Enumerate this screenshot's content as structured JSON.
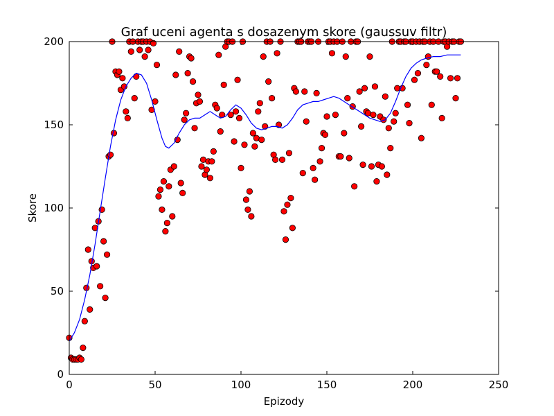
{
  "chart_data": {
    "type": "scatter",
    "title": "Graf uceni agenta s dosazenym skore (gaussuv filtr)",
    "xlabel": "Epizody",
    "ylabel": "Skore",
    "xlim": [
      0,
      250
    ],
    "ylim": [
      0,
      200
    ],
    "xticks": [
      0,
      50,
      100,
      150,
      200,
      250
    ],
    "yticks": [
      0,
      50,
      100,
      150,
      200
    ],
    "grid": false,
    "legend": "none",
    "colors": {
      "points": "#ff0000",
      "point_edge": "#000000",
      "line": "#0000ff"
    },
    "points": [
      [
        0,
        22
      ],
      [
        1,
        10
      ],
      [
        2,
        9
      ],
      [
        3,
        9
      ],
      [
        4,
        9
      ],
      [
        5,
        9
      ],
      [
        6,
        10
      ],
      [
        7,
        9
      ],
      [
        8,
        16
      ],
      [
        9,
        32
      ],
      [
        10,
        52
      ],
      [
        11,
        75
      ],
      [
        12,
        39
      ],
      [
        13,
        68
      ],
      [
        14,
        64
      ],
      [
        15,
        88
      ],
      [
        16,
        65
      ],
      [
        17,
        92
      ],
      [
        18,
        53
      ],
      [
        19,
        99
      ],
      [
        20,
        80
      ],
      [
        21,
        46
      ],
      [
        22,
        72
      ],
      [
        23,
        131
      ],
      [
        24,
        132
      ],
      [
        25,
        200
      ],
      [
        26,
        145
      ],
      [
        27,
        182
      ],
      [
        28,
        180
      ],
      [
        29,
        182
      ],
      [
        30,
        171
      ],
      [
        31,
        178
      ],
      [
        32,
        173
      ],
      [
        33,
        158
      ],
      [
        34,
        154
      ],
      [
        35,
        200
      ],
      [
        36,
        194
      ],
      [
        37,
        200
      ],
      [
        38,
        166
      ],
      [
        39,
        179
      ],
      [
        40,
        200
      ],
      [
        41,
        195
      ],
      [
        42,
        200
      ],
      [
        43,
        200
      ],
      [
        44,
        191
      ],
      [
        45,
        200
      ],
      [
        46,
        195
      ],
      [
        47,
        200
      ],
      [
        48,
        159
      ],
      [
        49,
        199
      ],
      [
        50,
        164
      ],
      [
        51,
        186
      ],
      [
        52,
        107
      ],
      [
        53,
        111
      ],
      [
        54,
        99
      ],
      [
        55,
        116
      ],
      [
        56,
        86
      ],
      [
        57,
        91
      ],
      [
        58,
        113
      ],
      [
        59,
        123
      ],
      [
        60,
        95
      ],
      [
        61,
        125
      ],
      [
        62,
        180
      ],
      [
        63,
        141
      ],
      [
        64,
        194
      ],
      [
        65,
        115
      ],
      [
        66,
        109
      ],
      [
        67,
        153
      ],
      [
        68,
        157
      ],
      [
        69,
        181
      ],
      [
        70,
        191
      ],
      [
        71,
        190
      ],
      [
        72,
        176
      ],
      [
        73,
        148
      ],
      [
        74,
        163
      ],
      [
        75,
        168
      ],
      [
        76,
        164
      ],
      [
        77,
        125
      ],
      [
        78,
        129
      ],
      [
        79,
        120
      ],
      [
        80,
        123
      ],
      [
        81,
        128
      ],
      [
        82,
        118
      ],
      [
        83,
        128
      ],
      [
        84,
        134
      ],
      [
        85,
        162
      ],
      [
        86,
        160
      ],
      [
        87,
        192
      ],
      [
        88,
        146
      ],
      [
        89,
        156
      ],
      [
        90,
        174
      ],
      [
        91,
        197
      ],
      [
        92,
        200
      ],
      [
        93,
        200
      ],
      [
        94,
        156
      ],
      [
        95,
        200
      ],
      [
        96,
        140
      ],
      [
        97,
        158
      ],
      [
        98,
        177
      ],
      [
        99,
        154
      ],
      [
        100,
        124
      ],
      [
        101,
        200
      ],
      [
        102,
        138
      ],
      [
        103,
        105
      ],
      [
        104,
        99
      ],
      [
        105,
        110
      ],
      [
        106,
        95
      ],
      [
        107,
        145
      ],
      [
        108,
        137
      ],
      [
        109,
        142
      ],
      [
        110,
        158
      ],
      [
        111,
        163
      ],
      [
        112,
        141
      ],
      [
        113,
        191
      ],
      [
        114,
        149
      ],
      [
        115,
        200
      ],
      [
        116,
        176
      ],
      [
        117,
        200
      ],
      [
        118,
        166
      ],
      [
        119,
        132
      ],
      [
        120,
        129
      ],
      [
        121,
        193
      ],
      [
        122,
        150
      ],
      [
        123,
        200
      ],
      [
        124,
        129
      ],
      [
        125,
        98
      ],
      [
        126,
        81
      ],
      [
        127,
        102
      ],
      [
        128,
        133
      ],
      [
        129,
        106
      ],
      [
        130,
        88
      ],
      [
        131,
        172
      ],
      [
        132,
        170
      ],
      [
        133,
        200
      ],
      [
        134,
        200
      ],
      [
        135,
        200
      ],
      [
        136,
        121
      ],
      [
        137,
        170
      ],
      [
        138,
        152
      ],
      [
        139,
        200
      ],
      [
        140,
        200
      ],
      [
        141,
        200
      ],
      [
        142,
        124
      ],
      [
        143,
        117
      ],
      [
        144,
        169
      ],
      [
        145,
        200
      ],
      [
        146,
        128
      ],
      [
        147,
        136
      ],
      [
        148,
        145
      ],
      [
        149,
        144
      ],
      [
        150,
        155
      ],
      [
        151,
        200
      ],
      [
        152,
        200
      ],
      [
        153,
        193
      ],
      [
        154,
        200
      ],
      [
        155,
        156
      ],
      [
        156,
        200
      ],
      [
        157,
        131
      ],
      [
        158,
        131
      ],
      [
        159,
        200
      ],
      [
        160,
        145
      ],
      [
        161,
        191
      ],
      [
        162,
        166
      ],
      [
        163,
        130
      ],
      [
        164,
        200
      ],
      [
        165,
        161
      ],
      [
        166,
        113
      ],
      [
        167,
        200
      ],
      [
        168,
        200
      ],
      [
        169,
        170
      ],
      [
        170,
        149
      ],
      [
        171,
        126
      ],
      [
        172,
        172
      ],
      [
        173,
        158
      ],
      [
        174,
        157
      ],
      [
        175,
        191
      ],
      [
        176,
        125
      ],
      [
        177,
        156
      ],
      [
        178,
        173
      ],
      [
        179,
        116
      ],
      [
        180,
        126
      ],
      [
        181,
        155
      ],
      [
        182,
        125
      ],
      [
        183,
        153
      ],
      [
        184,
        167
      ],
      [
        185,
        120
      ],
      [
        186,
        148
      ],
      [
        187,
        136
      ],
      [
        188,
        200
      ],
      [
        189,
        152
      ],
      [
        190,
        157
      ],
      [
        191,
        172
      ],
      [
        192,
        200
      ],
      [
        193,
        200
      ],
      [
        194,
        172
      ],
      [
        195,
        200
      ],
      [
        196,
        200
      ],
      [
        197,
        162
      ],
      [
        198,
        151
      ],
      [
        199,
        200
      ],
      [
        200,
        200
      ],
      [
        201,
        177
      ],
      [
        202,
        200
      ],
      [
        203,
        181
      ],
      [
        204,
        200
      ],
      [
        205,
        142
      ],
      [
        206,
        200
      ],
      [
        207,
        200
      ],
      [
        208,
        186
      ],
      [
        209,
        191
      ],
      [
        210,
        200
      ],
      [
        211,
        162
      ],
      [
        212,
        200
      ],
      [
        213,
        182
      ],
      [
        214,
        182
      ],
      [
        215,
        200
      ],
      [
        216,
        179
      ],
      [
        217,
        154
      ],
      [
        218,
        200
      ],
      [
        219,
        200
      ],
      [
        220,
        197
      ],
      [
        221,
        200
      ],
      [
        222,
        178
      ],
      [
        223,
        200
      ],
      [
        224,
        200
      ],
      [
        225,
        166
      ],
      [
        226,
        178
      ],
      [
        227,
        200
      ],
      [
        228,
        200
      ]
    ],
    "smoothed_line": [
      [
        0,
        20
      ],
      [
        3,
        25
      ],
      [
        6,
        33
      ],
      [
        9,
        45
      ],
      [
        12,
        60
      ],
      [
        15,
        78
      ],
      [
        18,
        98
      ],
      [
        21,
        118
      ],
      [
        24,
        137
      ],
      [
        27,
        153
      ],
      [
        30,
        165
      ],
      [
        33,
        173
      ],
      [
        36,
        178
      ],
      [
        39,
        181
      ],
      [
        42,
        180
      ],
      [
        45,
        175
      ],
      [
        48,
        165
      ],
      [
        51,
        153
      ],
      [
        54,
        142
      ],
      [
        56,
        137
      ],
      [
        58,
        136
      ],
      [
        61,
        139
      ],
      [
        64,
        145
      ],
      [
        67,
        150
      ],
      [
        70,
        153
      ],
      [
        73,
        154
      ],
      [
        76,
        154
      ],
      [
        79,
        156
      ],
      [
        82,
        158
      ],
      [
        85,
        156
      ],
      [
        88,
        154
      ],
      [
        91,
        155
      ],
      [
        94,
        159
      ],
      [
        97,
        162
      ],
      [
        100,
        160
      ],
      [
        103,
        156
      ],
      [
        106,
        151
      ],
      [
        109,
        148
      ],
      [
        112,
        147
      ],
      [
        115,
        148
      ],
      [
        118,
        149
      ],
      [
        121,
        149
      ],
      [
        124,
        148
      ],
      [
        127,
        150
      ],
      [
        130,
        154
      ],
      [
        133,
        159
      ],
      [
        136,
        162
      ],
      [
        139,
        163
      ],
      [
        142,
        164
      ],
      [
        145,
        164
      ],
      [
        148,
        165
      ],
      [
        151,
        166
      ],
      [
        154,
        167
      ],
      [
        157,
        166
      ],
      [
        160,
        164
      ],
      [
        163,
        162
      ],
      [
        166,
        160
      ],
      [
        169,
        158
      ],
      [
        172,
        156
      ],
      [
        175,
        154
      ],
      [
        178,
        153
      ],
      [
        181,
        152
      ],
      [
        184,
        153
      ],
      [
        187,
        157
      ],
      [
        190,
        164
      ],
      [
        193,
        172
      ],
      [
        196,
        179
      ],
      [
        199,
        184
      ],
      [
        202,
        187
      ],
      [
        205,
        189
      ],
      [
        208,
        190
      ],
      [
        212,
        191
      ],
      [
        216,
        191
      ],
      [
        220,
        192
      ],
      [
        224,
        192
      ],
      [
        228,
        192
      ]
    ]
  }
}
